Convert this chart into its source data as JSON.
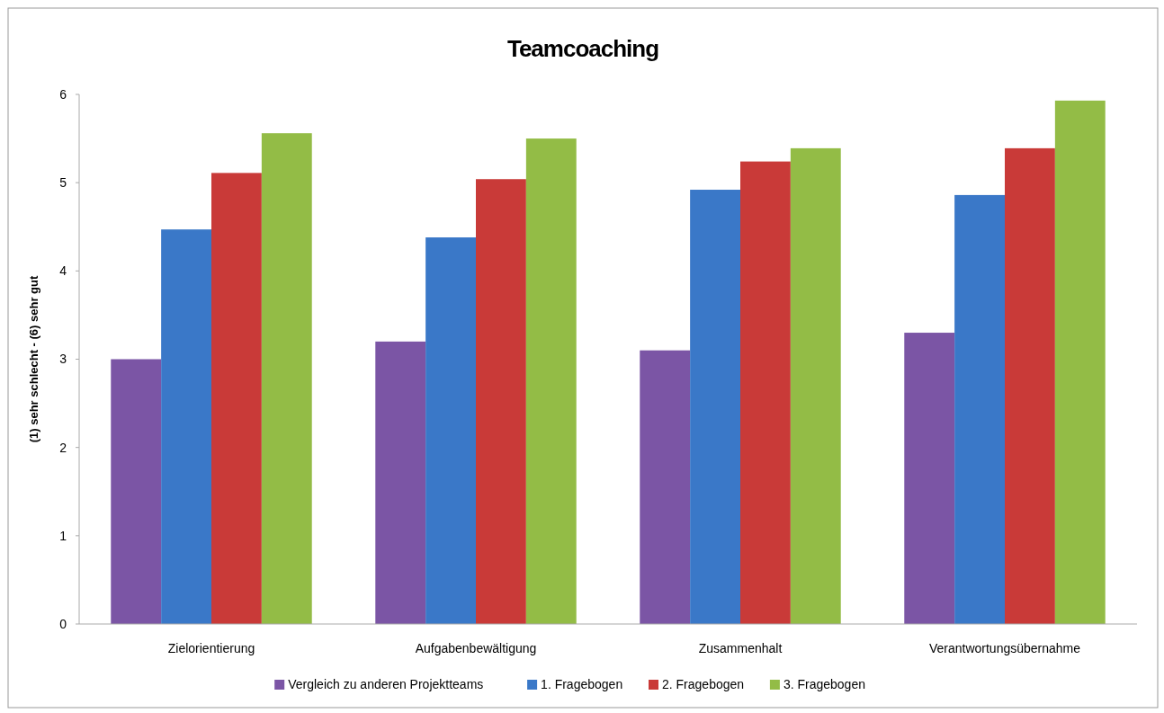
{
  "chart_data": {
    "type": "bar",
    "title": "Teamcoaching",
    "ylabel": "(1) sehr schlecht - (6) sehr gut",
    "categories": [
      "Zielorientierung",
      "Aufgabenbewältigung",
      "Zusammenhalt",
      "Verantwortungsübernahme"
    ],
    "series": [
      {
        "name": "Vergleich zu anderen Projektteams",
        "color": "#7b55a5",
        "values": [
          3.0,
          3.2,
          3.1,
          3.3
        ]
      },
      {
        "name": "1. Fragebogen",
        "color": "#3a78c8",
        "values": [
          4.47,
          4.38,
          4.92,
          4.86
        ]
      },
      {
        "name": "2. Fragebogen",
        "color": "#c93a38",
        "values": [
          5.11,
          5.04,
          5.24,
          5.39
        ]
      },
      {
        "name": "3. Fragebogen",
        "color": "#93bc46",
        "values": [
          5.56,
          5.5,
          5.39,
          5.93
        ]
      }
    ],
    "ylim": [
      0,
      6
    ],
    "yticks": [
      0,
      1,
      2,
      3,
      4,
      5,
      6
    ],
    "grid": false,
    "legend": "bottom"
  }
}
